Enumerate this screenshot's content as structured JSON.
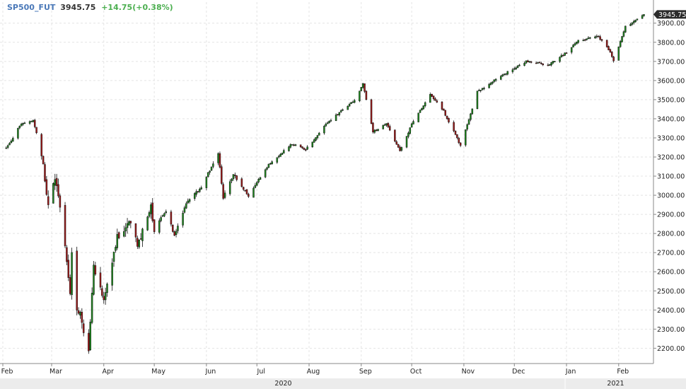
{
  "header": {
    "symbol": "SP500_FUT",
    "last": "3945.75",
    "change": "+14.75(+0.38%)"
  },
  "colors": {
    "up": "#1f8a1f",
    "down": "#a11a1a",
    "grid": "#e4e4e4",
    "axis": "#888888",
    "symbol": "#4a78b8",
    "change": "#4caf50",
    "footer_bg": "#ececec"
  },
  "chart_data": {
    "type": "candlestick",
    "y_ticks": [
      "2200.00",
      "2300.00",
      "2400.00",
      "2500.00",
      "2600.00",
      "2700.00",
      "2800.00",
      "2900.00",
      "3000.00",
      "3100.00",
      "3200.00",
      "3300.00",
      "3400.00",
      "3500.00",
      "3600.00",
      "3700.00",
      "3800.00",
      "3900.00"
    ],
    "ylim": [
      2120,
      4010
    ],
    "last_price_label": "3945.75",
    "months": [
      "Feb",
      "Mar",
      "Apr",
      "May",
      "Jun",
      "Jul",
      "Aug",
      "Sep",
      "Oct",
      "Nov",
      "Dec",
      "Jan",
      "Feb"
    ],
    "years": [
      "2020",
      "2021"
    ],
    "grid": true,
    "anchor_closes": [
      [
        "2020-02-03",
        3245
      ],
      [
        "2020-02-12",
        3375
      ],
      [
        "2020-02-19",
        3390
      ],
      [
        "2020-02-24",
        3220
      ],
      [
        "2020-02-28",
        2950
      ],
      [
        "2020-03-03",
        3080
      ],
      [
        "2020-03-06",
        2950
      ],
      [
        "2020-03-09",
        2750
      ],
      [
        "2020-03-12",
        2480
      ],
      [
        "2020-03-13",
        2700
      ],
      [
        "2020-03-16",
        2400
      ],
      [
        "2020-03-18",
        2380
      ],
      [
        "2020-03-20",
        2280
      ],
      [
        "2020-03-23",
        2200
      ],
      [
        "2020-03-26",
        2620
      ],
      [
        "2020-04-01",
        2460
      ],
      [
        "2020-04-09",
        2780
      ],
      [
        "2020-04-17",
        2870
      ],
      [
        "2020-04-21",
        2730
      ],
      [
        "2020-04-29",
        2940
      ],
      [
        "2020-05-01",
        2820
      ],
      [
        "2020-05-08",
        2920
      ],
      [
        "2020-05-13",
        2790
      ],
      [
        "2020-05-20",
        2960
      ],
      [
        "2020-05-29",
        3040
      ],
      [
        "2020-06-08",
        3220
      ],
      [
        "2020-06-11",
        2990
      ],
      [
        "2020-06-17",
        3110
      ],
      [
        "2020-06-26",
        3000
      ],
      [
        "2020-07-08",
        3160
      ],
      [
        "2020-07-22",
        3270
      ],
      [
        "2020-07-30",
        3240
      ],
      [
        "2020-08-12",
        3380
      ],
      [
        "2020-08-28",
        3500
      ],
      [
        "2020-09-02",
        3580
      ],
      [
        "2020-09-08",
        3330
      ],
      [
        "2020-09-16",
        3380
      ],
      [
        "2020-09-24",
        3230
      ],
      [
        "2020-10-01",
        3370
      ],
      [
        "2020-10-12",
        3530
      ],
      [
        "2020-10-20",
        3440
      ],
      [
        "2020-10-30",
        3260
      ],
      [
        "2020-11-09",
        3540
      ],
      [
        "2020-11-24",
        3630
      ],
      [
        "2020-12-08",
        3700
      ],
      [
        "2020-12-21",
        3680
      ],
      [
        "2020-12-31",
        3740
      ],
      [
        "2021-01-08",
        3810
      ],
      [
        "2021-01-20",
        3830
      ],
      [
        "2021-01-27",
        3750
      ],
      [
        "2021-01-29",
        3700
      ],
      [
        "2021-02-05",
        3880
      ],
      [
        "2021-02-16",
        3945.75
      ]
    ]
  }
}
